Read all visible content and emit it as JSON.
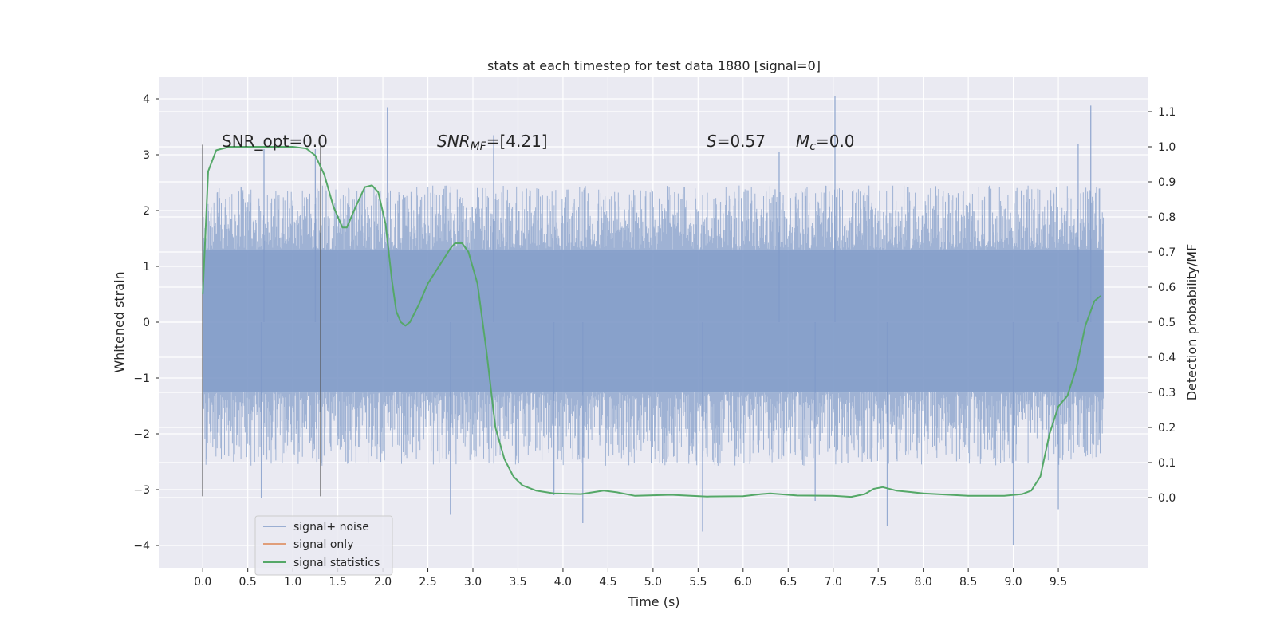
{
  "chart_data": {
    "type": "line",
    "title": "stats at each timestep for test data 1880 [signal=0]",
    "xlabel": "Time (s)",
    "ylabel": "Whitened strain",
    "y2label": "Detection probability/MF",
    "xlim": [
      -0.48,
      10.5
    ],
    "ylim": [
      -4.4,
      4.4
    ],
    "y2lim": [
      -0.2,
      1.2
    ],
    "x_ticks": [
      "0.0",
      "0.5",
      "1.0",
      "1.5",
      "2.0",
      "2.5",
      "3.0",
      "3.5",
      "4.0",
      "4.5",
      "5.0",
      "5.5",
      "6.0",
      "6.5",
      "7.0",
      "7.5",
      "8.0",
      "8.5",
      "9.0",
      "9.5"
    ],
    "y_ticks": [
      "−4",
      "−3",
      "−2",
      "−1",
      "0",
      "1",
      "2",
      "3",
      "4"
    ],
    "y2_ticks": [
      "0.0",
      "0.1",
      "0.2",
      "0.3",
      "0.4",
      "0.5",
      "0.6",
      "0.7",
      "0.8",
      "0.9",
      "1.0",
      "1.1"
    ],
    "grid": true,
    "legend_position": "lower-left",
    "annotations": {
      "snr_opt": "SNR_opt=0.0",
      "snr_mf_main": "SNR",
      "snr_mf_sub": "MF",
      "snr_mf_value": "=[4.21]",
      "s_main": "S",
      "s_value": "=0.57",
      "mc_main": "M",
      "mc_sub": "c",
      "mc_value": "=0.0"
    },
    "vertical_markers": [
      0.0,
      1.31
    ],
    "series": [
      {
        "name": "signal+ noise",
        "axis": "left",
        "color": "#7f9ac8",
        "x_range": [
          0.0,
          10.0
        ],
        "envelope_upper": 2.3,
        "envelope_lower": -2.4,
        "core_upper": 1.3,
        "core_lower": -1.25,
        "spikes": [
          {
            "x": 2.05,
            "y": 3.85
          },
          {
            "x": 7.02,
            "y": 4.05
          },
          {
            "x": 9.86,
            "y": 3.88
          },
          {
            "x": 9.72,
            "y": 3.2
          },
          {
            "x": 3.23,
            "y": 3.35
          },
          {
            "x": 0.68,
            "y": 3.1
          },
          {
            "x": 1.25,
            "y": 3.1
          },
          {
            "x": 6.4,
            "y": 3.05
          },
          {
            "x": 2.75,
            "y": -3.45
          },
          {
            "x": 4.22,
            "y": -3.6
          },
          {
            "x": 5.55,
            "y": -3.75
          },
          {
            "x": 7.6,
            "y": -3.65
          },
          {
            "x": 9.0,
            "y": -4.0
          },
          {
            "x": 9.5,
            "y": -3.35
          },
          {
            "x": 0.65,
            "y": -3.15
          },
          {
            "x": 3.9,
            "y": -3.1
          },
          {
            "x": 6.8,
            "y": -3.2
          }
        ]
      },
      {
        "name": "signal only",
        "axis": "left",
        "color": "#dd8452",
        "x": [],
        "y": []
      },
      {
        "name": "signal statistics",
        "axis": "right",
        "color": "#55a868",
        "x": [
          0.0,
          0.06,
          0.15,
          0.3,
          0.6,
          1.0,
          1.15,
          1.25,
          1.35,
          1.45,
          1.55,
          1.6,
          1.7,
          1.8,
          1.88,
          1.95,
          2.03,
          2.1,
          2.15,
          2.2,
          2.25,
          2.3,
          2.4,
          2.5,
          2.6,
          2.7,
          2.75,
          2.8,
          2.88,
          2.95,
          3.05,
          3.15,
          3.25,
          3.35,
          3.45,
          3.55,
          3.7,
          3.9,
          4.2,
          4.45,
          4.6,
          4.8,
          5.2,
          5.6,
          6.0,
          6.2,
          6.3,
          6.6,
          7.0,
          7.2,
          7.35,
          7.45,
          7.55,
          7.7,
          8.0,
          8.5,
          8.9,
          9.1,
          9.2,
          9.3,
          9.4,
          9.5,
          9.6,
          9.7,
          9.8,
          9.9,
          9.97
        ],
        "y": [
          0.58,
          0.93,
          0.99,
          1.0,
          1.0,
          1.0,
          0.995,
          0.975,
          0.92,
          0.83,
          0.77,
          0.77,
          0.83,
          0.885,
          0.89,
          0.87,
          0.78,
          0.62,
          0.53,
          0.5,
          0.49,
          0.5,
          0.55,
          0.61,
          0.65,
          0.69,
          0.71,
          0.725,
          0.725,
          0.7,
          0.61,
          0.42,
          0.2,
          0.11,
          0.06,
          0.035,
          0.02,
          0.012,
          0.01,
          0.02,
          0.015,
          0.005,
          0.008,
          0.003,
          0.004,
          0.01,
          0.012,
          0.006,
          0.005,
          0.002,
          0.01,
          0.025,
          0.03,
          0.02,
          0.012,
          0.005,
          0.005,
          0.01,
          0.02,
          0.06,
          0.18,
          0.26,
          0.29,
          0.37,
          0.49,
          0.56,
          0.575
        ]
      }
    ]
  }
}
